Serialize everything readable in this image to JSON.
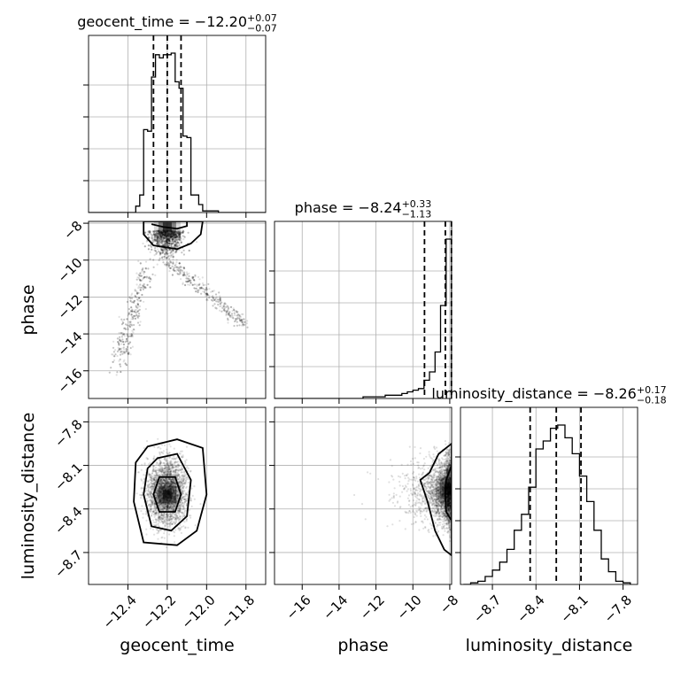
{
  "chart_data": {
    "type": "corner",
    "grid": true,
    "parameters": [
      {
        "name": "geocent_time",
        "axis_label": "geocent_time",
        "title": {
          "base": "geocent_time = −12.20",
          "sup": "+0.07",
          "sub": "−0.07"
        },
        "median": -12.2,
        "quantiles": [
          -12.27,
          -12.2,
          -12.13
        ],
        "range": [
          -12.6,
          -11.7
        ],
        "ticks": [
          -12.4,
          -12.2,
          -12.0,
          -11.8
        ],
        "tick_labels": [
          "−12.4",
          "−12.2",
          "−12.0",
          "−11.8"
        ],
        "histogram": {
          "x": [
            -12.6,
            -12.58,
            -12.56,
            -12.54,
            -12.52,
            -12.5,
            -12.48,
            -12.46,
            -12.44,
            -12.42,
            -12.4,
            -12.38,
            -12.36,
            -12.34,
            -12.32,
            -12.3,
            -12.28,
            -12.26,
            -12.24,
            -12.22,
            -12.2,
            -12.18,
            -12.16,
            -12.14,
            -12.12,
            -12.1,
            -12.08,
            -12.06,
            -12.04,
            -12.02,
            -12.0,
            -11.98,
            -11.96,
            -11.94,
            -11.92,
            -11.9,
            -11.88,
            -11.86,
            -11.84,
            -11.82,
            -11.8,
            -11.78,
            -11.76,
            -11.74,
            -11.72,
            -11.7
          ],
          "counts": [
            0,
            0,
            0,
            0,
            0,
            0,
            0,
            0,
            0,
            0,
            0,
            0,
            4,
            11,
            52,
            51,
            85,
            99,
            97,
            99,
            99,
            100,
            82,
            78,
            48,
            47,
            11,
            11,
            5,
            1,
            1,
            1,
            1,
            0,
            0,
            0,
            0,
            0,
            0,
            0,
            0,
            0,
            0,
            0,
            0,
            0
          ]
        }
      },
      {
        "name": "phase",
        "axis_label": "phase",
        "title": {
          "base": "phase = −8.24",
          "sup": "+0.33",
          "sub": "−1.13"
        },
        "median": -8.24,
        "quantiles": [
          -9.37,
          -8.24,
          -7.91
        ],
        "range": [
          -17.5,
          -7.9
        ],
        "ticks": [
          -16,
          -14,
          -12,
          -10,
          -8
        ],
        "tick_labels": [
          "−16",
          "−14",
          "−12",
          "−10",
          "−8"
        ],
        "histogram": {
          "x": [
            -17.5,
            -17.2,
            -16.9,
            -16.6,
            -16.3,
            -16.0,
            -15.7,
            -15.4,
            -15.1,
            -14.8,
            -14.5,
            -14.2,
            -13.9,
            -13.6,
            -13.3,
            -13.0,
            -12.7,
            -12.4,
            -12.1,
            -11.8,
            -11.5,
            -11.2,
            -10.9,
            -10.6,
            -10.3,
            -10.0,
            -9.7,
            -9.4,
            -9.1,
            -8.8,
            -8.5,
            -8.2,
            -7.9
          ],
          "counts": [
            0,
            0,
            0,
            0,
            0,
            0,
            0,
            0,
            0,
            0,
            0,
            0,
            0,
            0,
            0,
            0,
            1,
            1,
            1,
            1,
            2,
            2,
            2,
            3,
            4,
            5,
            6,
            11,
            16,
            28,
            56,
            96,
            0
          ]
        }
      },
      {
        "name": "luminosity_distance",
        "axis_label": "luminosity_distance",
        "title": {
          "base": "luminosity_distance = −8.26",
          "sup": "+0.17",
          "sub": "−0.18"
        },
        "median": -8.26,
        "quantiles": [
          -8.44,
          -8.26,
          -8.09
        ],
        "range": [
          -8.92,
          -7.7
        ],
        "ticks": [
          -8.7,
          -8.4,
          -8.1,
          -7.8
        ],
        "tick_labels": [
          "−8.7",
          "−8.4",
          "−8.1",
          "−7.8"
        ],
        "histogram": {
          "x": [
            -8.9,
            -8.85,
            -8.8,
            -8.75,
            -8.7,
            -8.65,
            -8.6,
            -8.55,
            -8.5,
            -8.45,
            -8.4,
            -8.35,
            -8.3,
            -8.25,
            -8.2,
            -8.15,
            -8.1,
            -8.05,
            -8.0,
            -7.95,
            -7.9,
            -7.85,
            -7.8,
            -7.75
          ],
          "counts": [
            0,
            1,
            2,
            5,
            9,
            14,
            22,
            34,
            44,
            61,
            85,
            90,
            98,
            100,
            92,
            82,
            68,
            52,
            34,
            16,
            8,
            2,
            1,
            0
          ]
        }
      }
    ],
    "pairs": [
      {
        "x": "geocent_time",
        "y": "phase",
        "mode": {
          "x": -12.2,
          "y": -8.2
        },
        "contours": [
          {
            "level": "inner",
            "points": [
              [
                -12.28,
                -8.05
              ],
              [
                -12.22,
                -8.2
              ],
              [
                -12.15,
                -8.3
              ],
              [
                -12.1,
                -8.15
              ],
              [
                -12.1,
                -7.9
              ]
            ]
          },
          {
            "level": "outer",
            "points": [
              [
                -12.32,
                -7.9
              ],
              [
                -12.32,
                -8.6
              ],
              [
                -12.27,
                -9.2
              ],
              [
                -12.15,
                -9.4
              ],
              [
                -12.08,
                -9.1
              ],
              [
                -12.03,
                -8.6
              ],
              [
                -12.02,
                -7.9
              ]
            ]
          }
        ]
      },
      {
        "x": "geocent_time",
        "y": "luminosity_distance",
        "mode": {
          "x": -12.2,
          "y": -8.3
        },
        "contours": [
          {
            "level": "inner",
            "points": [
              [
                -12.24,
                -8.18
              ],
              [
                -12.16,
                -8.18
              ],
              [
                -12.13,
                -8.3
              ],
              [
                -12.16,
                -8.42
              ],
              [
                -12.24,
                -8.42
              ],
              [
                -12.27,
                -8.3
              ]
            ]
          },
          {
            "level": "middle",
            "points": [
              [
                -12.25,
                -8.05
              ],
              [
                -12.15,
                -8.02
              ],
              [
                -12.08,
                -8.2
              ],
              [
                -12.1,
                -8.45
              ],
              [
                -12.18,
                -8.55
              ],
              [
                -12.28,
                -8.52
              ],
              [
                -12.32,
                -8.3
              ],
              [
                -12.3,
                -8.12
              ]
            ]
          },
          {
            "level": "outer",
            "points": [
              [
                -12.3,
                -7.97
              ],
              [
                -12.15,
                -7.92
              ],
              [
                -12.02,
                -7.98
              ],
              [
                -12.0,
                -8.3
              ],
              [
                -12.05,
                -8.55
              ],
              [
                -12.15,
                -8.65
              ],
              [
                -12.32,
                -8.63
              ],
              [
                -12.37,
                -8.35
              ],
              [
                -12.36,
                -8.08
              ]
            ]
          }
        ]
      },
      {
        "x": "phase",
        "y": "luminosity_distance",
        "mode": {
          "x": -8.05,
          "y": -8.27
        },
        "contours": [
          {
            "level": "inner",
            "points": [
              [
                -7.9,
                -8.1
              ],
              [
                -8.2,
                -8.2
              ],
              [
                -8.25,
                -8.3
              ],
              [
                -8.2,
                -8.42
              ],
              [
                -7.9,
                -8.48
              ]
            ]
          },
          {
            "level": "outer",
            "points": [
              [
                -7.9,
                -7.95
              ],
              [
                -8.6,
                -8.02
              ],
              [
                -9.1,
                -8.15
              ],
              [
                -9.6,
                -8.2
              ],
              [
                -9.2,
                -8.35
              ],
              [
                -8.8,
                -8.55
              ],
              [
                -8.3,
                -8.68
              ],
              [
                -7.9,
                -8.72
              ]
            ]
          }
        ]
      }
    ]
  }
}
